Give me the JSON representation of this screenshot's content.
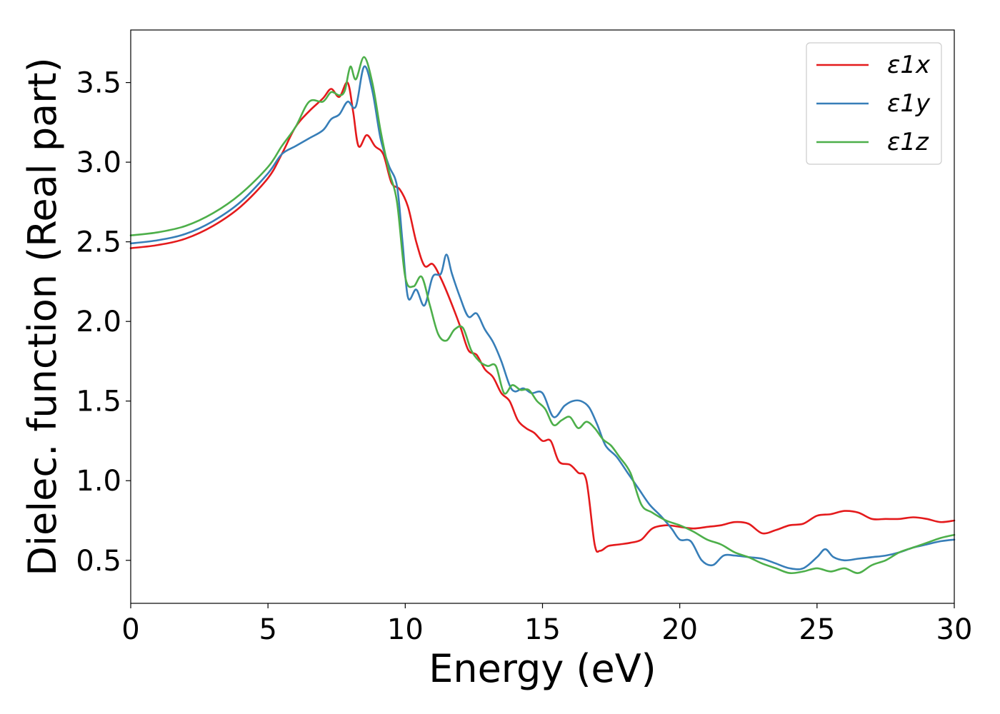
{
  "chart_data": {
    "type": "line",
    "title": "",
    "xlabel": "Energy (eV)",
    "ylabel": "Dielec. function (Real part)",
    "xlim": [
      0,
      30
    ],
    "ylim": [
      0.23,
      3.83
    ],
    "xticks": [
      0,
      5,
      10,
      15,
      20,
      25,
      30
    ],
    "xtick_labels": [
      "0",
      "5",
      "10",
      "15",
      "20",
      "25",
      "30"
    ],
    "yticks": [
      0.5,
      1.0,
      1.5,
      2.0,
      2.5,
      3.0,
      3.5
    ],
    "ytick_labels": [
      "0.5",
      "1.0",
      "1.5",
      "2.0",
      "2.5",
      "3.0",
      "3.5"
    ],
    "grid": false,
    "legend_position": "top-right",
    "series": [
      {
        "name": "ε1x",
        "color": "#e41a1c",
        "x": [
          0,
          1,
          2,
          3,
          4,
          5,
          5.5,
          6,
          6.5,
          7,
          7.3,
          7.6,
          7.9,
          8.1,
          8.3,
          8.6,
          8.9,
          9.2,
          9.5,
          9.8,
          10.1,
          10.4,
          10.7,
          11.0,
          11.3,
          11.6,
          12.0,
          12.3,
          12.6,
          12.9,
          13.2,
          13.5,
          13.8,
          14.1,
          14.4,
          14.7,
          15.0,
          15.3,
          15.6,
          16.0,
          16.3,
          16.6,
          16.9,
          17.1,
          17.4,
          17.8,
          18.2,
          18.6,
          19.0,
          19.5,
          20.0,
          20.5,
          21.0,
          21.5,
          22.0,
          22.5,
          23.0,
          23.5,
          24.0,
          24.5,
          25.0,
          25.5,
          26.0,
          26.5,
          27.0,
          27.5,
          28.0,
          28.5,
          29.0,
          29.5,
          30.0
        ],
        "values": [
          2.46,
          2.48,
          2.52,
          2.6,
          2.72,
          2.9,
          3.05,
          3.22,
          3.32,
          3.4,
          3.46,
          3.41,
          3.5,
          3.32,
          3.1,
          3.17,
          3.1,
          3.05,
          2.87,
          2.83,
          2.72,
          2.5,
          2.35,
          2.36,
          2.27,
          2.15,
          1.97,
          1.82,
          1.79,
          1.7,
          1.65,
          1.55,
          1.5,
          1.38,
          1.33,
          1.3,
          1.25,
          1.25,
          1.12,
          1.1,
          1.05,
          1.0,
          0.6,
          0.56,
          0.59,
          0.6,
          0.61,
          0.63,
          0.7,
          0.72,
          0.71,
          0.7,
          0.71,
          0.72,
          0.74,
          0.73,
          0.67,
          0.69,
          0.72,
          0.73,
          0.78,
          0.79,
          0.81,
          0.8,
          0.76,
          0.76,
          0.76,
          0.77,
          0.76,
          0.74,
          0.75
        ]
      },
      {
        "name": "ε1y",
        "color": "#377eb8",
        "x": [
          0,
          1,
          2,
          3,
          4,
          5,
          5.5,
          6,
          6.5,
          7,
          7.3,
          7.6,
          7.9,
          8.2,
          8.5,
          8.8,
          9.1,
          9.4,
          9.7,
          9.9,
          10.1,
          10.4,
          10.7,
          11.0,
          11.3,
          11.5,
          11.7,
          12.0,
          12.3,
          12.6,
          12.9,
          13.2,
          13.5,
          13.8,
          14.0,
          14.3,
          14.6,
          15.0,
          15.4,
          15.8,
          16.1,
          16.4,
          16.7,
          17.0,
          17.3,
          17.7,
          18.1,
          18.5,
          18.9,
          19.3,
          19.7,
          20.0,
          20.4,
          20.8,
          21.2,
          21.6,
          22.0,
          22.5,
          23.0,
          23.5,
          24.0,
          24.5,
          25.0,
          25.3,
          25.6,
          26.0,
          26.5,
          27.0,
          27.5,
          28.0,
          28.5,
          29.0,
          29.5,
          30.0
        ],
        "values": [
          2.49,
          2.51,
          2.55,
          2.63,
          2.75,
          2.93,
          3.05,
          3.1,
          3.15,
          3.2,
          3.27,
          3.3,
          3.38,
          3.35,
          3.6,
          3.45,
          3.15,
          2.98,
          2.85,
          2.5,
          2.15,
          2.2,
          2.1,
          2.28,
          2.3,
          2.42,
          2.3,
          2.15,
          2.03,
          2.05,
          1.95,
          1.87,
          1.75,
          1.6,
          1.56,
          1.58,
          1.55,
          1.55,
          1.4,
          1.47,
          1.5,
          1.5,
          1.46,
          1.35,
          1.22,
          1.15,
          1.05,
          0.95,
          0.85,
          0.78,
          0.7,
          0.63,
          0.62,
          0.5,
          0.47,
          0.53,
          0.53,
          0.52,
          0.51,
          0.48,
          0.45,
          0.45,
          0.52,
          0.57,
          0.52,
          0.5,
          0.51,
          0.52,
          0.53,
          0.55,
          0.58,
          0.6,
          0.62,
          0.63
        ]
      },
      {
        "name": "ε1z",
        "color": "#4daf4a",
        "x": [
          0,
          1,
          2,
          3,
          4,
          5,
          5.5,
          6,
          6.5,
          7,
          7.3,
          7.6,
          7.8,
          8.0,
          8.2,
          8.5,
          8.8,
          9.1,
          9.4,
          9.7,
          10.0,
          10.3,
          10.6,
          10.9,
          11.2,
          11.5,
          11.8,
          12.1,
          12.4,
          12.7,
          13.0,
          13.3,
          13.6,
          13.9,
          14.2,
          14.5,
          14.8,
          15.1,
          15.4,
          15.7,
          16.0,
          16.3,
          16.6,
          16.9,
          17.2,
          17.5,
          17.8,
          18.2,
          18.6,
          19.0,
          19.5,
          20.0,
          20.5,
          21.0,
          21.5,
          22.0,
          22.5,
          23.0,
          23.5,
          24.0,
          24.5,
          25.0,
          25.5,
          26.0,
          26.5,
          27.0,
          27.5,
          28.0,
          28.5,
          29.0,
          29.5,
          30.0
        ],
        "values": [
          2.54,
          2.56,
          2.6,
          2.68,
          2.8,
          2.97,
          3.1,
          3.22,
          3.38,
          3.38,
          3.44,
          3.42,
          3.45,
          3.6,
          3.52,
          3.66,
          3.5,
          3.2,
          2.95,
          2.75,
          2.28,
          2.22,
          2.28,
          2.1,
          1.92,
          1.88,
          1.95,
          1.96,
          1.82,
          1.75,
          1.72,
          1.72,
          1.55,
          1.6,
          1.57,
          1.57,
          1.5,
          1.45,
          1.35,
          1.38,
          1.4,
          1.33,
          1.37,
          1.33,
          1.26,
          1.22,
          1.15,
          1.05,
          0.85,
          0.8,
          0.75,
          0.72,
          0.68,
          0.63,
          0.6,
          0.55,
          0.52,
          0.48,
          0.45,
          0.42,
          0.43,
          0.45,
          0.43,
          0.45,
          0.42,
          0.47,
          0.5,
          0.55,
          0.58,
          0.61,
          0.64,
          0.66
        ]
      }
    ]
  }
}
